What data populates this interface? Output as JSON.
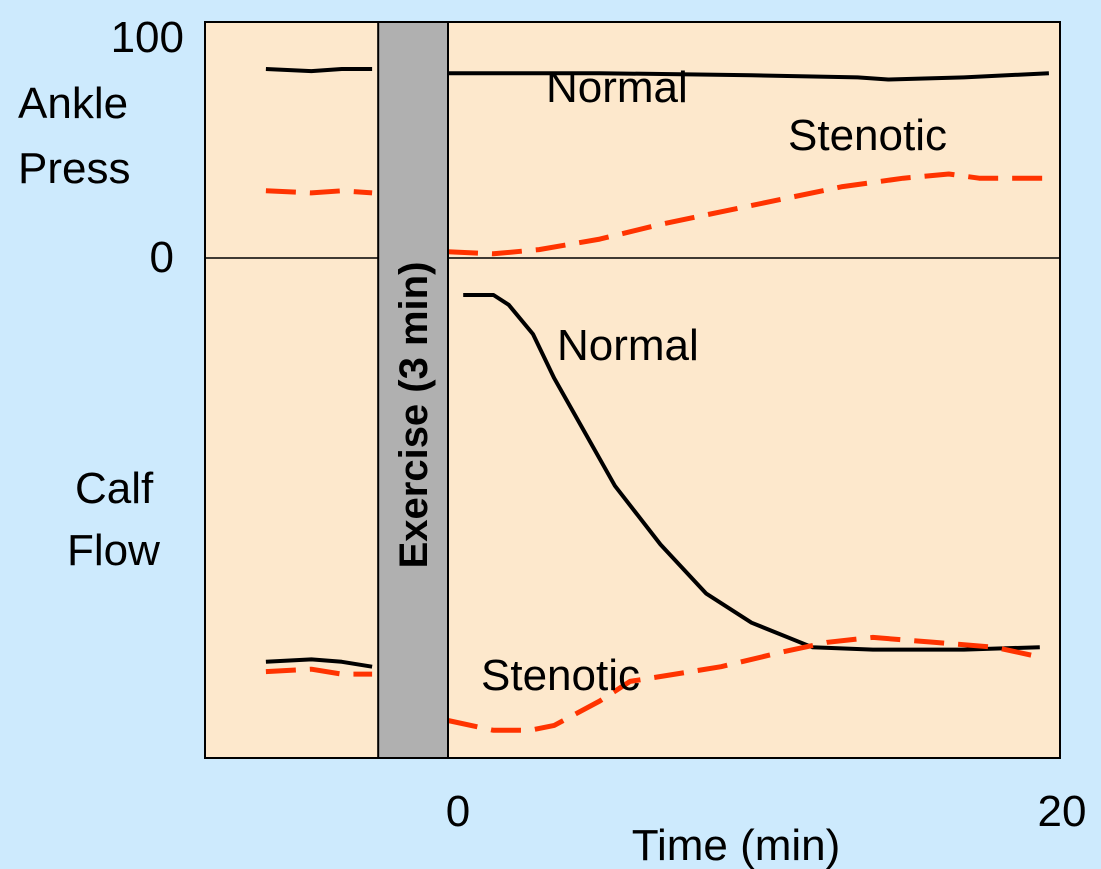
{
  "chart_data": {
    "type": "line",
    "xlabel": "Time (min)",
    "x_ticks": [
      "0",
      "20"
    ],
    "xlim": [
      -6,
      20
    ],
    "exercise_band": {
      "label": "Exercise (3 min)",
      "x_range": [
        -2.3,
        0
      ]
    },
    "panels": [
      {
        "ylabel": [
          "Ankle",
          "Press"
        ],
        "y_ticks": [
          "100",
          "0"
        ],
        "ylim": [
          0,
          100
        ],
        "series": [
          {
            "name": "Normal",
            "style": "solid",
            "color": "#000000",
            "segments": [
              [
                [
                  -6,
                  90
                ],
                [
                  -4.5,
                  89
                ],
                [
                  -3.5,
                  90
                ],
                [
                  -2.5,
                  90
                ]
              ],
              [
                [
                  0,
                  88
                ],
                [
                  5,
                  88
                ],
                [
                  10,
                  87
                ],
                [
                  13.5,
                  86
                ],
                [
                  14.5,
                  85
                ],
                [
                  17,
                  86
                ],
                [
                  19.8,
                  88
                ]
              ]
            ]
          },
          {
            "name": "Stenotic",
            "style": "dashed",
            "color": "#ff3300",
            "segments": [
              [
                [
                  -6,
                  32
                ],
                [
                  -4.5,
                  31
                ],
                [
                  -3.5,
                  32
                ],
                [
                  -2.5,
                  31
                ]
              ],
              [
                [
                  0,
                  3
                ],
                [
                  1.5,
                  2
                ],
                [
                  3,
                  4
                ],
                [
                  5,
                  9
                ],
                [
                  7,
                  16
                ],
                [
                  9,
                  22
                ],
                [
                  11,
                  28
                ],
                [
                  13,
                  34
                ],
                [
                  15,
                  38
                ],
                [
                  16.5,
                  40
                ],
                [
                  17.5,
                  38
                ],
                [
                  19.8,
                  38
                ]
              ]
            ]
          }
        ],
        "annotations": [
          "Normal",
          "Stenotic"
        ]
      },
      {
        "ylabel": [
          "Calf",
          "Flow"
        ],
        "y_ticks": [],
        "ylim": [
          0,
          100
        ],
        "series": [
          {
            "name": "Normal",
            "style": "solid",
            "color": "#000000",
            "segments": [
              [
                [
                  -6,
                  17
                ],
                [
                  -4.5,
                  17.5
                ],
                [
                  -3.5,
                  17
                ],
                [
                  -2.5,
                  16
                ]
              ],
              [
                [
                  0.5,
                  92
                ],
                [
                  1.5,
                  92
                ],
                [
                  2,
                  90
                ],
                [
                  2.8,
                  84
                ],
                [
                  3.5,
                  75
                ],
                [
                  4.5,
                  64
                ],
                [
                  5.5,
                  53
                ],
                [
                  7,
                  41
                ],
                [
                  8.5,
                  31
                ],
                [
                  10,
                  25
                ],
                [
                  12,
                  20
                ],
                [
                  14,
                  19.5
                ],
                [
                  17,
                  19.5
                ],
                [
                  19.5,
                  20
                ]
              ]
            ]
          },
          {
            "name": "Stenotic",
            "style": "dashed",
            "color": "#ff3300",
            "segments": [
              [
                [
                  -6,
                  15
                ],
                [
                  -4.5,
                  15.5
                ],
                [
                  -3.5,
                  14.5
                ],
                [
                  -2.5,
                  14.5
                ]
              ],
              [
                [
                  0,
                  5
                ],
                [
                  1.5,
                  3
                ],
                [
                  2.7,
                  3
                ],
                [
                  3.5,
                  4
                ],
                [
                  5,
                  9
                ],
                [
                  6,
                  13
                ],
                [
                  7,
                  14
                ],
                [
                  9,
                  16
                ],
                [
                  11,
                  19
                ],
                [
                  12.5,
                  21
                ],
                [
                  14,
                  22
                ],
                [
                  16,
                  21
                ],
                [
                  18,
                  20
                ],
                [
                  19.5,
                  18
                ]
              ]
            ]
          }
        ],
        "annotations": [
          "Normal",
          "Stenotic"
        ]
      }
    ]
  }
}
